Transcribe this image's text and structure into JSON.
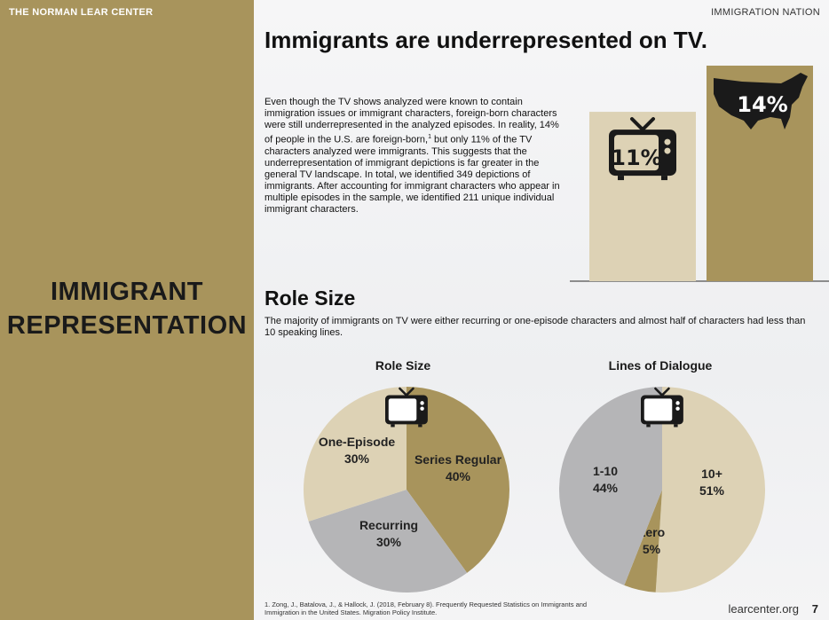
{
  "sidebar": {
    "org_name": "THE NORMAN LEAR CENTER",
    "section_title_line1": "IMMIGRANT",
    "section_title_line2": "REPRESENTATION"
  },
  "header": {
    "series_name": "IMMIGRATION NATION"
  },
  "main": {
    "headline": "Immigrants are underrepresented on TV.",
    "intro_before_sup": "Even though the TV shows analyzed were known to contain immigration issues or immigrant characters, foreign-born characters were still underrepresented in the analyzed episodes. In reality, 14% of people in the U.S. are foreign-born,",
    "footnote_mark": "1",
    "intro_after_sup": " but only 11% of the TV characters analyzed were immigrants. This suggests that the underrepresentation of immigrant depictions is far greater in the general TV landscape. In total, we identified 349 depictions of immigrants. After accounting for immigrant characters who appear in multiple episodes in the sample, we identified 211 unique individual immigrant characters.",
    "role_title": "Role Size",
    "role_desc": "The majority of immigrants on TV were either recurring or one-episode characters and almost half of characters had less than 10 speaking lines."
  },
  "footer": {
    "footnote": "1. Zong, J., Batalova, J., & Hallock, J. (2018, February 8). Frequently Requested Statistics on Immigrants and Immigration in the United States. Migration Policy Institute.",
    "site": "learcenter.org",
    "page_number": "7"
  },
  "colors": {
    "gold": "#a8945c",
    "beige": "#ddd2b5",
    "gray": "#b5b5b7",
    "dark": "#1a1a1a"
  },
  "icons": [
    "tv-icon",
    "us-map-icon"
  ],
  "chart_data": [
    {
      "type": "bar",
      "categories": [
        "TV",
        "U.S."
      ],
      "values": [
        11,
        14
      ],
      "value_labels": [
        "11%",
        "14%"
      ],
      "colors": [
        "#ddd2b5",
        "#a8945c"
      ],
      "title": "",
      "xlabel": "",
      "ylabel": "",
      "ylim": [
        0,
        14
      ],
      "grid": false
    },
    {
      "type": "pie",
      "title": "Role Size",
      "slices": [
        {
          "label": "Series Regular",
          "value": 40,
          "display": "40%",
          "color": "#a8945c"
        },
        {
          "label": "Recurring",
          "value": 30,
          "display": "30%",
          "color": "#b5b5b7"
        },
        {
          "label": "One-Episode",
          "value": 30,
          "display": "30%",
          "color": "#ddd2b5"
        }
      ]
    },
    {
      "type": "pie",
      "title": "Lines of Dialogue",
      "slices": [
        {
          "label": "10+",
          "value": 51,
          "display": "51%",
          "color": "#ddd2b5"
        },
        {
          "label": "Zero",
          "value": 5,
          "display": "5%",
          "color": "#a8945c"
        },
        {
          "label": "1-10",
          "value": 44,
          "display": "44%",
          "color": "#b5b5b7"
        }
      ]
    }
  ]
}
